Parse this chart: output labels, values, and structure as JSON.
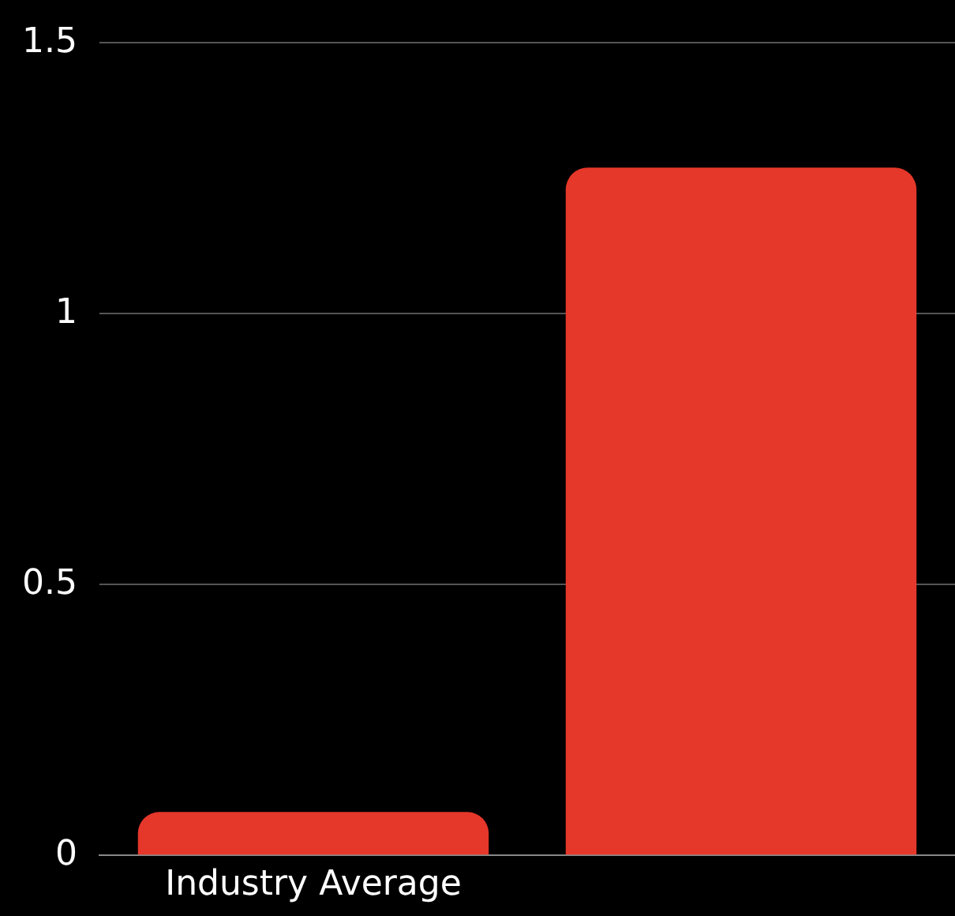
{
  "chart_data": {
    "type": "bar",
    "categories": [
      "Industry Average",
      null
    ],
    "values": [
      0.08,
      1.27
    ],
    "color": "#e5372a",
    "ylim": [
      0,
      1.5
    ],
    "yticks": [
      0,
      0.5,
      1,
      1.5
    ],
    "grid": "y"
  }
}
